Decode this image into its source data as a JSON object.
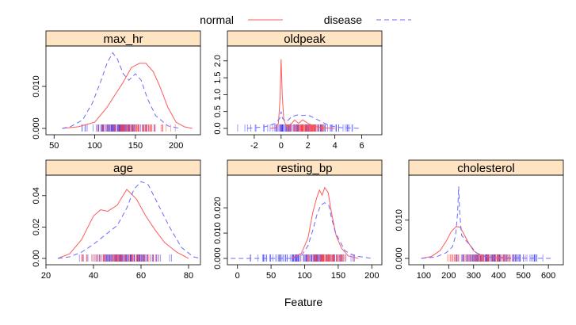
{
  "figure": {
    "xlabel": "Feature",
    "legend": [
      {
        "name": "normal",
        "color": "#FF5A5A",
        "dash": "solid"
      },
      {
        "name": "disease",
        "color": "#6A6AFF",
        "dash": "6,4"
      }
    ],
    "rug_colors": {
      "normal": "#FF4040",
      "disease": "#2020FF"
    }
  },
  "chart_data": [
    {
      "type": "density",
      "title": "max_hr",
      "xlim": [
        40,
        230
      ],
      "ylim": [
        0,
        0.0185
      ],
      "xticks": [
        50,
        100,
        150,
        200
      ],
      "yticks": [
        0.0,
        0.01
      ],
      "ytick_labels": [
        "0.000",
        "0.010"
      ],
      "series": [
        {
          "name": "normal",
          "points": [
            [
              60,
              0
            ],
            [
              80,
              0.0004
            ],
            [
              100,
              0.0015
            ],
            [
              115,
              0.005
            ],
            [
              125,
              0.008
            ],
            [
              135,
              0.011
            ],
            [
              145,
              0.0145
            ],
            [
              155,
              0.0155
            ],
            [
              163,
              0.0155
            ],
            [
              172,
              0.0135
            ],
            [
              180,
              0.01
            ],
            [
              190,
              0.005
            ],
            [
              200,
              0.0015
            ],
            [
              210,
              0.0004
            ],
            [
              220,
              0
            ]
          ]
        },
        {
          "name": "disease",
          "points": [
            [
              60,
              0
            ],
            [
              70,
              0.0004
            ],
            [
              85,
              0.002
            ],
            [
              97,
              0.006
            ],
            [
              107,
              0.011
            ],
            [
              115,
              0.0155
            ],
            [
              122,
              0.018
            ],
            [
              128,
              0.0165
            ],
            [
              135,
              0.013
            ],
            [
              142,
              0.0115
            ],
            [
              150,
              0.013
            ],
            [
              157,
              0.0115
            ],
            [
              165,
              0.007
            ],
            [
              175,
              0.003
            ],
            [
              190,
              0.0006
            ],
            [
              205,
              0
            ]
          ]
        }
      ],
      "rug": {
        "normal_range": [
          90,
          205
        ],
        "disease_range": [
          65,
          190
        ]
      }
    },
    {
      "type": "density",
      "title": "oldpeak",
      "xlim": [
        -4,
        7.5
      ],
      "ylim": [
        0,
        2.3
      ],
      "xticks": [
        -2,
        0,
        2,
        4,
        6
      ],
      "yticks": [
        0.0,
        0.5,
        1.0,
        1.5,
        2.0
      ],
      "ytick_labels": [
        "0.0",
        "0.5",
        "1.0",
        "1.5",
        "2.0"
      ],
      "series": [
        {
          "name": "normal",
          "points": [
            [
              -0.8,
              0
            ],
            [
              -0.4,
              0.02
            ],
            [
              -0.2,
              0.15
            ],
            [
              -0.08,
              0.9
            ],
            [
              0,
              2.05
            ],
            [
              0.08,
              1.0
            ],
            [
              0.2,
              0.25
            ],
            [
              0.4,
              0.05
            ],
            [
              0.8,
              0.15
            ],
            [
              1.0,
              0.25
            ],
            [
              1.3,
              0.15
            ],
            [
              1.6,
              0.25
            ],
            [
              2.0,
              0.15
            ],
            [
              2.5,
              0.06
            ],
            [
              3.0,
              0.02
            ],
            [
              4.0,
              0
            ]
          ]
        },
        {
          "name": "disease",
          "points": [
            [
              -2.5,
              0
            ],
            [
              -1.2,
              0.05
            ],
            [
              -0.4,
              0.15
            ],
            [
              -0.1,
              0.3
            ],
            [
              0,
              0.5
            ],
            [
              0.1,
              0.3
            ],
            [
              0.4,
              0.2
            ],
            [
              0.8,
              0.35
            ],
            [
              1.2,
              0.4
            ],
            [
              1.6,
              0.38
            ],
            [
              2.0,
              0.4
            ],
            [
              2.5,
              0.3
            ],
            [
              3.0,
              0.2
            ],
            [
              3.6,
              0.08
            ],
            [
              4.5,
              0.02
            ],
            [
              6.0,
              0
            ]
          ]
        }
      ],
      "rug": {
        "normal_range": [
          -0.5,
          4.2
        ],
        "disease_range": [
          -3.5,
          6.5
        ]
      }
    },
    {
      "type": "density",
      "title": "age",
      "xlim": [
        20,
        85
      ],
      "ylim": [
        0,
        0.05
      ],
      "xticks": [
        20,
        40,
        60,
        80
      ],
      "yticks": [
        0.0,
        0.02,
        0.04
      ],
      "ytick_labels": [
        "0.00",
        "0.02",
        "0.04"
      ],
      "series": [
        {
          "name": "normal",
          "points": [
            [
              25,
              0
            ],
            [
              30,
              0.003
            ],
            [
              35,
              0.012
            ],
            [
              40,
              0.027
            ],
            [
              43,
              0.031
            ],
            [
              46,
              0.03
            ],
            [
              50,
              0.034
            ],
            [
              54,
              0.044
            ],
            [
              58,
              0.038
            ],
            [
              62,
              0.027
            ],
            [
              66,
              0.018
            ],
            [
              70,
              0.01
            ],
            [
              75,
              0.004
            ],
            [
              80,
              0
            ]
          ]
        },
        {
          "name": "disease",
          "points": [
            [
              25,
              0
            ],
            [
              30,
              0.001
            ],
            [
              35,
              0.004
            ],
            [
              40,
              0.009
            ],
            [
              45,
              0.015
            ],
            [
              50,
              0.021
            ],
            [
              54,
              0.032
            ],
            [
              57,
              0.044
            ],
            [
              60,
              0.049
            ],
            [
              63,
              0.047
            ],
            [
              67,
              0.035
            ],
            [
              72,
              0.02
            ],
            [
              77,
              0.007
            ],
            [
              82,
              0.001
            ],
            [
              85,
              0
            ]
          ]
        }
      ],
      "rug": {
        "normal_range": [
          28,
          76
        ],
        "disease_range": [
          31,
          77
        ]
      }
    },
    {
      "type": "density",
      "title": "resting_bp",
      "xlim": [
        -15,
        215
      ],
      "ylim": [
        0,
        0.031
      ],
      "xticks": [
        0,
        50,
        100,
        150,
        200
      ],
      "yticks": [
        0.0,
        0.01,
        0.02
      ],
      "ytick_labels": [
        "0.000",
        "0.010",
        "0.020"
      ],
      "series": [
        {
          "name": "normal",
          "points": [
            [
              80,
              0
            ],
            [
              95,
              0.002
            ],
            [
              105,
              0.008
            ],
            [
              112,
              0.018
            ],
            [
              118,
              0.024
            ],
            [
              122,
              0.027
            ],
            [
              126,
              0.025
            ],
            [
              130,
              0.028
            ],
            [
              135,
              0.026
            ],
            [
              140,
              0.018
            ],
            [
              147,
              0.009
            ],
            [
              155,
              0.004
            ],
            [
              165,
              0.001
            ],
            [
              180,
              0
            ]
          ]
        },
        {
          "name": "disease",
          "points": [
            [
              -10,
              0
            ],
            [
              80,
              0
            ],
            [
              95,
              0.001
            ],
            [
              105,
              0.005
            ],
            [
              112,
              0.011
            ],
            [
              118,
              0.017
            ],
            [
              124,
              0.021
            ],
            [
              130,
              0.022
            ],
            [
              136,
              0.021
            ],
            [
              140,
              0.016
            ],
            [
              146,
              0.01
            ],
            [
              152,
              0.007
            ],
            [
              160,
              0.003
            ],
            [
              175,
              0.001
            ],
            [
              200,
              0
            ]
          ]
        }
      ],
      "rug": {
        "normal_range": [
          80,
          180
        ],
        "disease_range": [
          0,
          200
        ]
      }
    },
    {
      "type": "density",
      "title": "cholesterol",
      "xlim": [
        40,
        660
      ],
      "ylim": [
        0,
        0.0205
      ],
      "xticks": [
        100,
        200,
        300,
        400,
        500,
        600
      ],
      "yticks": [
        0.0,
        0.01
      ],
      "ytick_labels": [
        "0.000",
        "0.010"
      ],
      "series": [
        {
          "name": "normal",
          "points": [
            [
              90,
              0
            ],
            [
              130,
              0.0005
            ],
            [
              165,
              0.002
            ],
            [
              190,
              0.0045
            ],
            [
              210,
              0.007
            ],
            [
              230,
              0.0083
            ],
            [
              245,
              0.0082
            ],
            [
              260,
              0.0065
            ],
            [
              280,
              0.004
            ],
            [
              300,
              0.002
            ],
            [
              330,
              0.0007
            ],
            [
              380,
              0.0002
            ],
            [
              450,
              0
            ]
          ]
        },
        {
          "name": "disease",
          "points": [
            [
              90,
              0
            ],
            [
              150,
              0.0004
            ],
            [
              190,
              0.0015
            ],
            [
              215,
              0.003
            ],
            [
              228,
              0.006
            ],
            [
              236,
              0.012
            ],
            [
              240,
              0.0188
            ],
            [
              244,
              0.012
            ],
            [
              252,
              0.006
            ],
            [
              265,
              0.005
            ],
            [
              285,
              0.0035
            ],
            [
              310,
              0.0015
            ],
            [
              350,
              0.0004
            ],
            [
              450,
              0.0001
            ],
            [
              620,
              0
            ]
          ]
        }
      ],
      "rug": {
        "normal_range": [
          100,
          570
        ],
        "disease_range": [
          100,
          620
        ]
      }
    }
  ]
}
